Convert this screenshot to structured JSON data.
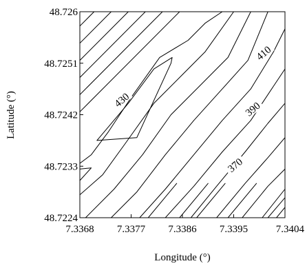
{
  "chart_data": {
    "type": "contour",
    "xlabel": "Longitude (°)",
    "ylabel": "Latitude (°)",
    "xlim": [
      7.3368,
      7.3404
    ],
    "ylim": [
      48.7224,
      48.726
    ],
    "x_ticks": [
      "7.3368",
      "7.3377",
      "7.3386",
      "7.3395",
      "7.3404"
    ],
    "y_ticks": [
      "48.7224",
      "48.7233",
      "48.7242",
      "48.7251",
      "48.726"
    ],
    "labeled_contours": [
      {
        "level": "430",
        "x": 7.33755,
        "y": 48.72444
      },
      {
        "level": "410",
        "x": 7.34004,
        "y": 48.72526
      },
      {
        "level": "390",
        "x": 7.33985,
        "y": 48.72428
      },
      {
        "level": "370",
        "x": 7.33954,
        "y": 48.7233
      }
    ],
    "contours": [
      [
        [
          7.33705,
          48.726
        ],
        [
          7.3368,
          48.72575
        ]
      ],
      [
        [
          7.33735,
          48.726
        ],
        [
          7.3368,
          48.72545
        ]
      ],
      [
        [
          7.33765,
          48.726
        ],
        [
          7.3368,
          48.72515
        ]
      ],
      [
        [
          7.33795,
          48.726
        ],
        [
          7.3368,
          48.72485
        ]
      ],
      [
        [
          7.33825,
          48.726
        ],
        [
          7.3368,
          48.72455
        ]
      ],
      [
        [
          7.33855,
          48.726
        ],
        [
          7.3368,
          48.72425
        ]
      ],
      [
        [
          7.3371,
          48.72375
        ],
        [
          7.33765,
          48.7244
        ],
        [
          7.3381,
          48.725
        ],
        [
          7.33842,
          48.7252
        ],
        [
          7.3384,
          48.7251
        ],
        [
          7.3378,
          48.7238
        ],
        [
          7.3371,
          48.72375
        ]
      ],
      [
        [
          7.3368,
          48.72335
        ],
        [
          7.337,
          48.7235
        ],
        [
          7.3373,
          48.7239
        ],
        [
          7.3377,
          48.7245
        ],
        [
          7.3382,
          48.7252
        ],
        [
          7.3387,
          48.7255
        ],
        [
          7.339,
          48.7258
        ],
        [
          7.3393,
          48.726
        ]
      ],
      [
        [
          7.3368,
          48.72325
        ],
        [
          7.337,
          48.72327
        ],
        [
          7.3368,
          48.72305
        ]
      ],
      [
        [
          7.3368,
          48.7228
        ],
        [
          7.3372,
          48.72315
        ],
        [
          7.3376,
          48.7237
        ],
        [
          7.3381,
          48.7244
        ],
        [
          7.3386,
          48.7249
        ],
        [
          7.339,
          48.7253
        ],
        [
          7.3395,
          48.726
        ]
      ],
      [
        [
          7.3369,
          48.7224
        ],
        [
          7.3374,
          48.7229
        ],
        [
          7.3379,
          48.7235
        ],
        [
          7.3384,
          48.7242
        ],
        [
          7.3389,
          48.7247
        ],
        [
          7.3394,
          48.7252
        ],
        [
          7.3398,
          48.726
        ]
      ],
      [
        [
          7.33735,
          48.7224
        ],
        [
          7.3378,
          48.72285
        ],
        [
          7.3383,
          48.7235
        ],
        [
          7.3388,
          48.7241
        ],
        [
          7.3393,
          48.72465
        ],
        [
          7.33975,
          48.72515
        ],
        [
          7.3401,
          48.726
        ]
      ],
      [
        [
          7.33785,
          48.7224
        ],
        [
          7.3383,
          48.7229
        ],
        [
          7.3388,
          48.7235
        ],
        [
          7.3393,
          48.7241
        ],
        [
          7.3398,
          48.72465
        ],
        [
          7.3402,
          48.7253
        ],
        [
          7.3404,
          48.7257
        ]
      ],
      [
        [
          7.3383,
          48.7224
        ],
        [
          7.3388,
          48.72295
        ],
        [
          7.3393,
          48.72355
        ],
        [
          7.3398,
          48.7241
        ],
        [
          7.3402,
          48.7247
        ],
        [
          7.3404,
          48.725
        ]
      ],
      [
        [
          7.33875,
          48.7224
        ],
        [
          7.3392,
          48.72295
        ],
        [
          7.3397,
          48.72355
        ],
        [
          7.3401,
          48.72405
        ],
        [
          7.3404,
          48.7244
        ]
      ],
      [
        [
          7.3392,
          48.7224
        ],
        [
          7.3397,
          48.723
        ],
        [
          7.3401,
          48.72345
        ],
        [
          7.3404,
          48.7238
        ]
      ],
      [
        [
          7.33965,
          48.7224
        ],
        [
          7.3401,
          48.72295
        ],
        [
          7.3404,
          48.72325
        ]
      ],
      [
        [
          7.3401,
          48.7224
        ],
        [
          7.3404,
          48.72275
        ]
      ],
      [
        [
          7.33885,
          48.7224
        ],
        [
          7.33935,
          48.723
        ]
      ],
      [
        [
          7.34,
          48.7224
        ],
        [
          7.3404,
          48.7229
        ]
      ],
      [
        [
          7.338,
          48.7224
        ],
        [
          7.3385,
          48.723
        ]
      ],
      [
        [
          7.33855,
          48.7224
        ],
        [
          7.33905,
          48.723
        ]
      ],
      [
        [
          7.3394,
          48.7224
        ],
        [
          7.3399,
          48.723
        ]
      ],
      [
        [
          7.34025,
          48.7224
        ],
        [
          7.3404,
          48.72258
        ]
      ]
    ]
  }
}
